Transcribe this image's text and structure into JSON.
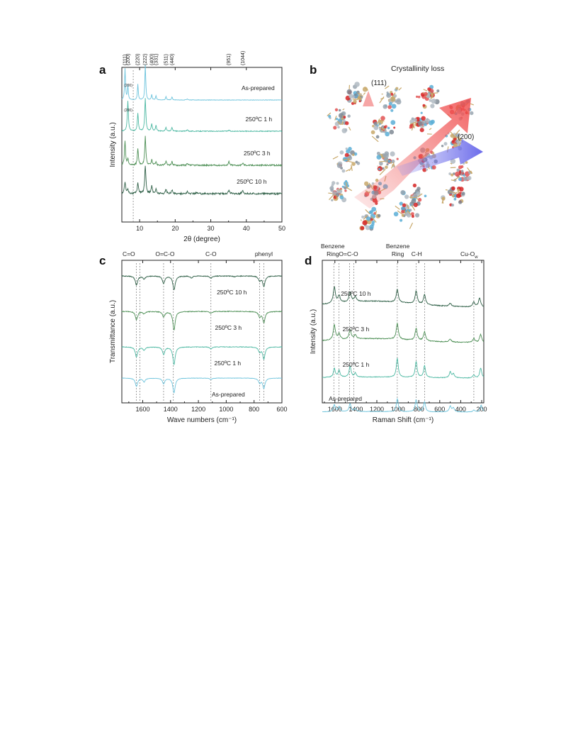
{
  "colors": {
    "s10h": "#2e5f46",
    "s3h": "#4d8f55",
    "s1h": "#4cb8a2",
    "asprep": "#6cc3dc",
    "axis": "#222222",
    "guide": "#777777"
  },
  "panels": {
    "a": {
      "letter": "a"
    },
    "b": {
      "letter": "b",
      "title": "Crystallinity loss",
      "label_111": "(111)",
      "label_200": "(200)"
    },
    "c": {
      "letter": "c"
    },
    "d": {
      "letter": "d"
    }
  },
  "chart_data": [
    {
      "id": "a",
      "type": "line",
      "xlabel": "2θ (degree)",
      "ylabel": "Intensity (a.u.)",
      "xlim": [
        5,
        50
      ],
      "xticks": [
        10,
        20,
        30,
        40,
        50
      ],
      "reverse_x": false,
      "top_labels": [
        {
          "text": "(111)",
          "x": 5.9
        },
        {
          "text": "(200)",
          "x": 6.8
        },
        {
          "text": "(220)",
          "x": 9.5
        },
        {
          "text": "(222)",
          "x": 11.6
        },
        {
          "text": "(400)",
          "x": 13.5
        },
        {
          "text": "(331)",
          "x": 14.7
        },
        {
          "text": "(511)",
          "x": 17.4
        },
        {
          "text": "(440)",
          "x": 19.1
        },
        {
          "text": "(951)",
          "x": 35.1
        },
        {
          "text": "(1044)",
          "x": 39.0
        }
      ],
      "guides": [
        {
          "x": 8.2
        }
      ],
      "annotations": [
        {
          "text": "(200)",
          "x": 6.8,
          "series": 0
        },
        {
          "text": "(200)",
          "x": 6.8,
          "series": 1
        }
      ],
      "series": [
        {
          "name": "250ºC 10 h",
          "color_key": "s10h",
          "peaks": [
            [
              5.9,
              1.0
            ],
            [
              6.7,
              0.35
            ],
            [
              9.5,
              0.9
            ],
            [
              11.6,
              2.3
            ],
            [
              13.4,
              0.6
            ],
            [
              14.6,
              0.35
            ],
            [
              17.4,
              0.35
            ],
            [
              19.1,
              0.3
            ],
            [
              23.4,
              0.15
            ],
            [
              26.0,
              0.1
            ],
            [
              35.1,
              0.3
            ],
            [
              39.0,
              0.25
            ]
          ],
          "noise": 0.07,
          "width": 0.2
        },
        {
          "name": "250ºC 3 h",
          "color_key": "s3h",
          "peaks": [
            [
              5.9,
              2.0
            ],
            [
              6.7,
              0.55
            ],
            [
              9.5,
              1.4
            ],
            [
              11.6,
              2.4
            ],
            [
              13.4,
              0.45
            ],
            [
              14.6,
              0.3
            ],
            [
              17.4,
              0.35
            ],
            [
              19.1,
              0.3
            ],
            [
              23.4,
              0.12
            ],
            [
              35.1,
              0.3
            ],
            [
              39.0,
              0.2
            ]
          ],
          "noise": 0.06,
          "width": 0.18
        },
        {
          "name": "250ºC 1 h",
          "color_key": "s1h",
          "peaks": [
            [
              6.7,
              2.5
            ],
            [
              9.5,
              1.45
            ],
            [
              11.6,
              2.7
            ],
            [
              13.4,
              0.6
            ],
            [
              14.6,
              0.45
            ],
            [
              17.4,
              0.3
            ],
            [
              19.1,
              0.3
            ],
            [
              23.4,
              0.12
            ],
            [
              35.1,
              0.1
            ]
          ],
          "noise": 0.03,
          "width": 0.18
        },
        {
          "name": "As-prepared",
          "color_key": "asprep",
          "peaks": [
            [
              5.9,
              2.6
            ],
            [
              6.7,
              1.2
            ],
            [
              9.5,
              1.3
            ],
            [
              11.6,
              2.9
            ],
            [
              13.4,
              0.45
            ],
            [
              14.6,
              0.35
            ],
            [
              17.4,
              0.3
            ],
            [
              19.1,
              0.25
            ],
            [
              23.4,
              0.1
            ]
          ],
          "noise": 0.02,
          "width": 0.15
        }
      ],
      "series_label_x": [
        41.5,
        43.0,
        43.5,
        43.3
      ]
    },
    {
      "id": "c",
      "type": "line",
      "xlabel": "Wave numbers (cm⁻¹)",
      "ylabel": "Transmittance (a.u.)",
      "xlim": [
        1750,
        600
      ],
      "xticks": [
        1600,
        1400,
        1200,
        1000,
        800,
        600
      ],
      "reverse_x": true,
      "top_labels": [
        {
          "text": "C=O",
          "x": 1700
        },
        {
          "text": "O=C-O",
          "x": 1440
        },
        {
          "text": "C-O",
          "x": 1110
        },
        {
          "text": "phenyl",
          "x": 730
        }
      ],
      "guides": [
        {
          "x": 1645
        },
        {
          "x": 1620
        },
        {
          "x": 1450
        },
        {
          "x": 1380
        },
        {
          "x": 1110
        },
        {
          "x": 760
        },
        {
          "x": 730
        }
      ],
      "series": [
        {
          "name": "250ºC 10 h",
          "color_key": "s10h",
          "peaks": [
            [
              1645,
              1.0
            ],
            [
              1590,
              0.3
            ],
            [
              1450,
              0.8
            ],
            [
              1375,
              1.5
            ],
            [
              1250,
              0.2
            ],
            [
              1110,
              0.25
            ],
            [
              940,
              0.1
            ],
            [
              760,
              0.5
            ],
            [
              730,
              1.1
            ]
          ],
          "noise": 0.04,
          "width": 10
        },
        {
          "name": "250ºC 3 h",
          "color_key": "s3h",
          "peaks": [
            [
              1645,
              0.9
            ],
            [
              1590,
              0.25
            ],
            [
              1450,
              0.6
            ],
            [
              1375,
              2.0
            ],
            [
              1110,
              0.2
            ],
            [
              760,
              0.55
            ],
            [
              730,
              1.2
            ]
          ],
          "noise": 0.04,
          "width": 10
        },
        {
          "name": "250ºC 1 h",
          "color_key": "s1h",
          "peaks": [
            [
              1645,
              1.1
            ],
            [
              1590,
              0.35
            ],
            [
              1450,
              0.8
            ],
            [
              1375,
              1.9
            ],
            [
              1110,
              0.2
            ],
            [
              760,
              0.55
            ],
            [
              730,
              1.3
            ]
          ],
          "noise": 0.03,
          "width": 10
        },
        {
          "name": "As-prepared",
          "color_key": "asprep",
          "peaks": [
            [
              1645,
              0.9
            ],
            [
              1590,
              0.4
            ],
            [
              1450,
              0.6
            ],
            [
              1375,
              1.6
            ],
            [
              1110,
              0.15
            ],
            [
              760,
              0.5
            ],
            [
              730,
              1.1
            ]
          ],
          "noise": 0.02,
          "width": 10
        }
      ],
      "series_label_x": [
        960,
        985,
        990,
        985
      ]
    },
    {
      "id": "d",
      "type": "line",
      "xlabel": "Raman Shift (cm⁻¹)",
      "ylabel": "Intensity (a.u.)",
      "xlim": [
        1720,
        180
      ],
      "xticks": [
        1600,
        1400,
        1200,
        1000,
        800,
        600,
        400,
        200
      ],
      "reverse_x": true,
      "top_labels": [
        {
          "text": "Benzene",
          "x": 1620,
          "row": 0
        },
        {
          "text": "Ring",
          "x": 1620,
          "row": 1
        },
        {
          "text": "O=C-O",
          "x": 1470,
          "row": 1
        },
        {
          "text": "Benzene",
          "x": 1000,
          "row": 0
        },
        {
          "text": "Ring",
          "x": 1000,
          "row": 1
        },
        {
          "text": "C-H",
          "x": 820,
          "row": 1
        },
        {
          "text": "Cu-O",
          "x": 320,
          "row": 1,
          "sub": "w"
        }
      ],
      "guides": [
        {
          "x": 1610
        },
        {
          "x": 1560
        },
        {
          "x": 1460
        },
        {
          "x": 1420
        },
        {
          "x": 1005
        },
        {
          "x": 825
        },
        {
          "x": 745
        },
        {
          "x": 275
        }
      ],
      "series": [
        {
          "name": "250ºC 10 h",
          "color_key": "s10h",
          "peaks": [
            [
              1605,
              1.6
            ],
            [
              1560,
              0.7
            ],
            [
              1455,
              1.0
            ],
            [
              1405,
              0.5
            ],
            [
              1005,
              1.3
            ],
            [
              825,
              1.3
            ],
            [
              745,
              1.0
            ],
            [
              500,
              0.3
            ],
            [
              275,
              0.5
            ],
            [
              220,
              0.9
            ]
          ],
          "noise": 0.04,
          "width": 12,
          "bg": 0.6
        },
        {
          "name": "250ºC 3 h",
          "color_key": "s3h",
          "peaks": [
            [
              1605,
              1.5
            ],
            [
              1560,
              0.6
            ],
            [
              1455,
              0.9
            ],
            [
              1405,
              0.4
            ],
            [
              1005,
              1.6
            ],
            [
              825,
              1.2
            ],
            [
              745,
              0.9
            ],
            [
              500,
              0.3
            ],
            [
              275,
              0.4
            ],
            [
              210,
              0.8
            ]
          ],
          "noise": 0.04,
          "width": 12,
          "bg": 0.4
        },
        {
          "name": "250ºC 1 h",
          "color_key": "s1h",
          "peaks": [
            [
              1605,
              0.9
            ],
            [
              1560,
              0.7
            ],
            [
              1455,
              1.1
            ],
            [
              1405,
              0.4
            ],
            [
              1005,
              1.9
            ],
            [
              825,
              1.6
            ],
            [
              745,
              1.2
            ],
            [
              500,
              0.6
            ],
            [
              470,
              0.4
            ],
            [
              275,
              0.3
            ],
            [
              210,
              1.0
            ]
          ],
          "noise": 0.03,
          "width": 11,
          "bg": 0.1
        },
        {
          "name": "As-prepared",
          "color_key": "asprep",
          "peaks": [
            [
              1605,
              0.7
            ],
            [
              1560,
              0.5
            ],
            [
              1455,
              0.8
            ],
            [
              1405,
              0.3
            ],
            [
              1005,
              1.3
            ],
            [
              825,
              1.2
            ],
            [
              745,
              1.0
            ],
            [
              500,
              0.6
            ],
            [
              470,
              0.4
            ],
            [
              275,
              0.2
            ],
            [
              205,
              0.7
            ]
          ],
          "noise": 0.02,
          "width": 11,
          "bg": 0.05
        }
      ],
      "series_label_x": [
        1400,
        1400,
        1400,
        1500
      ]
    }
  ]
}
